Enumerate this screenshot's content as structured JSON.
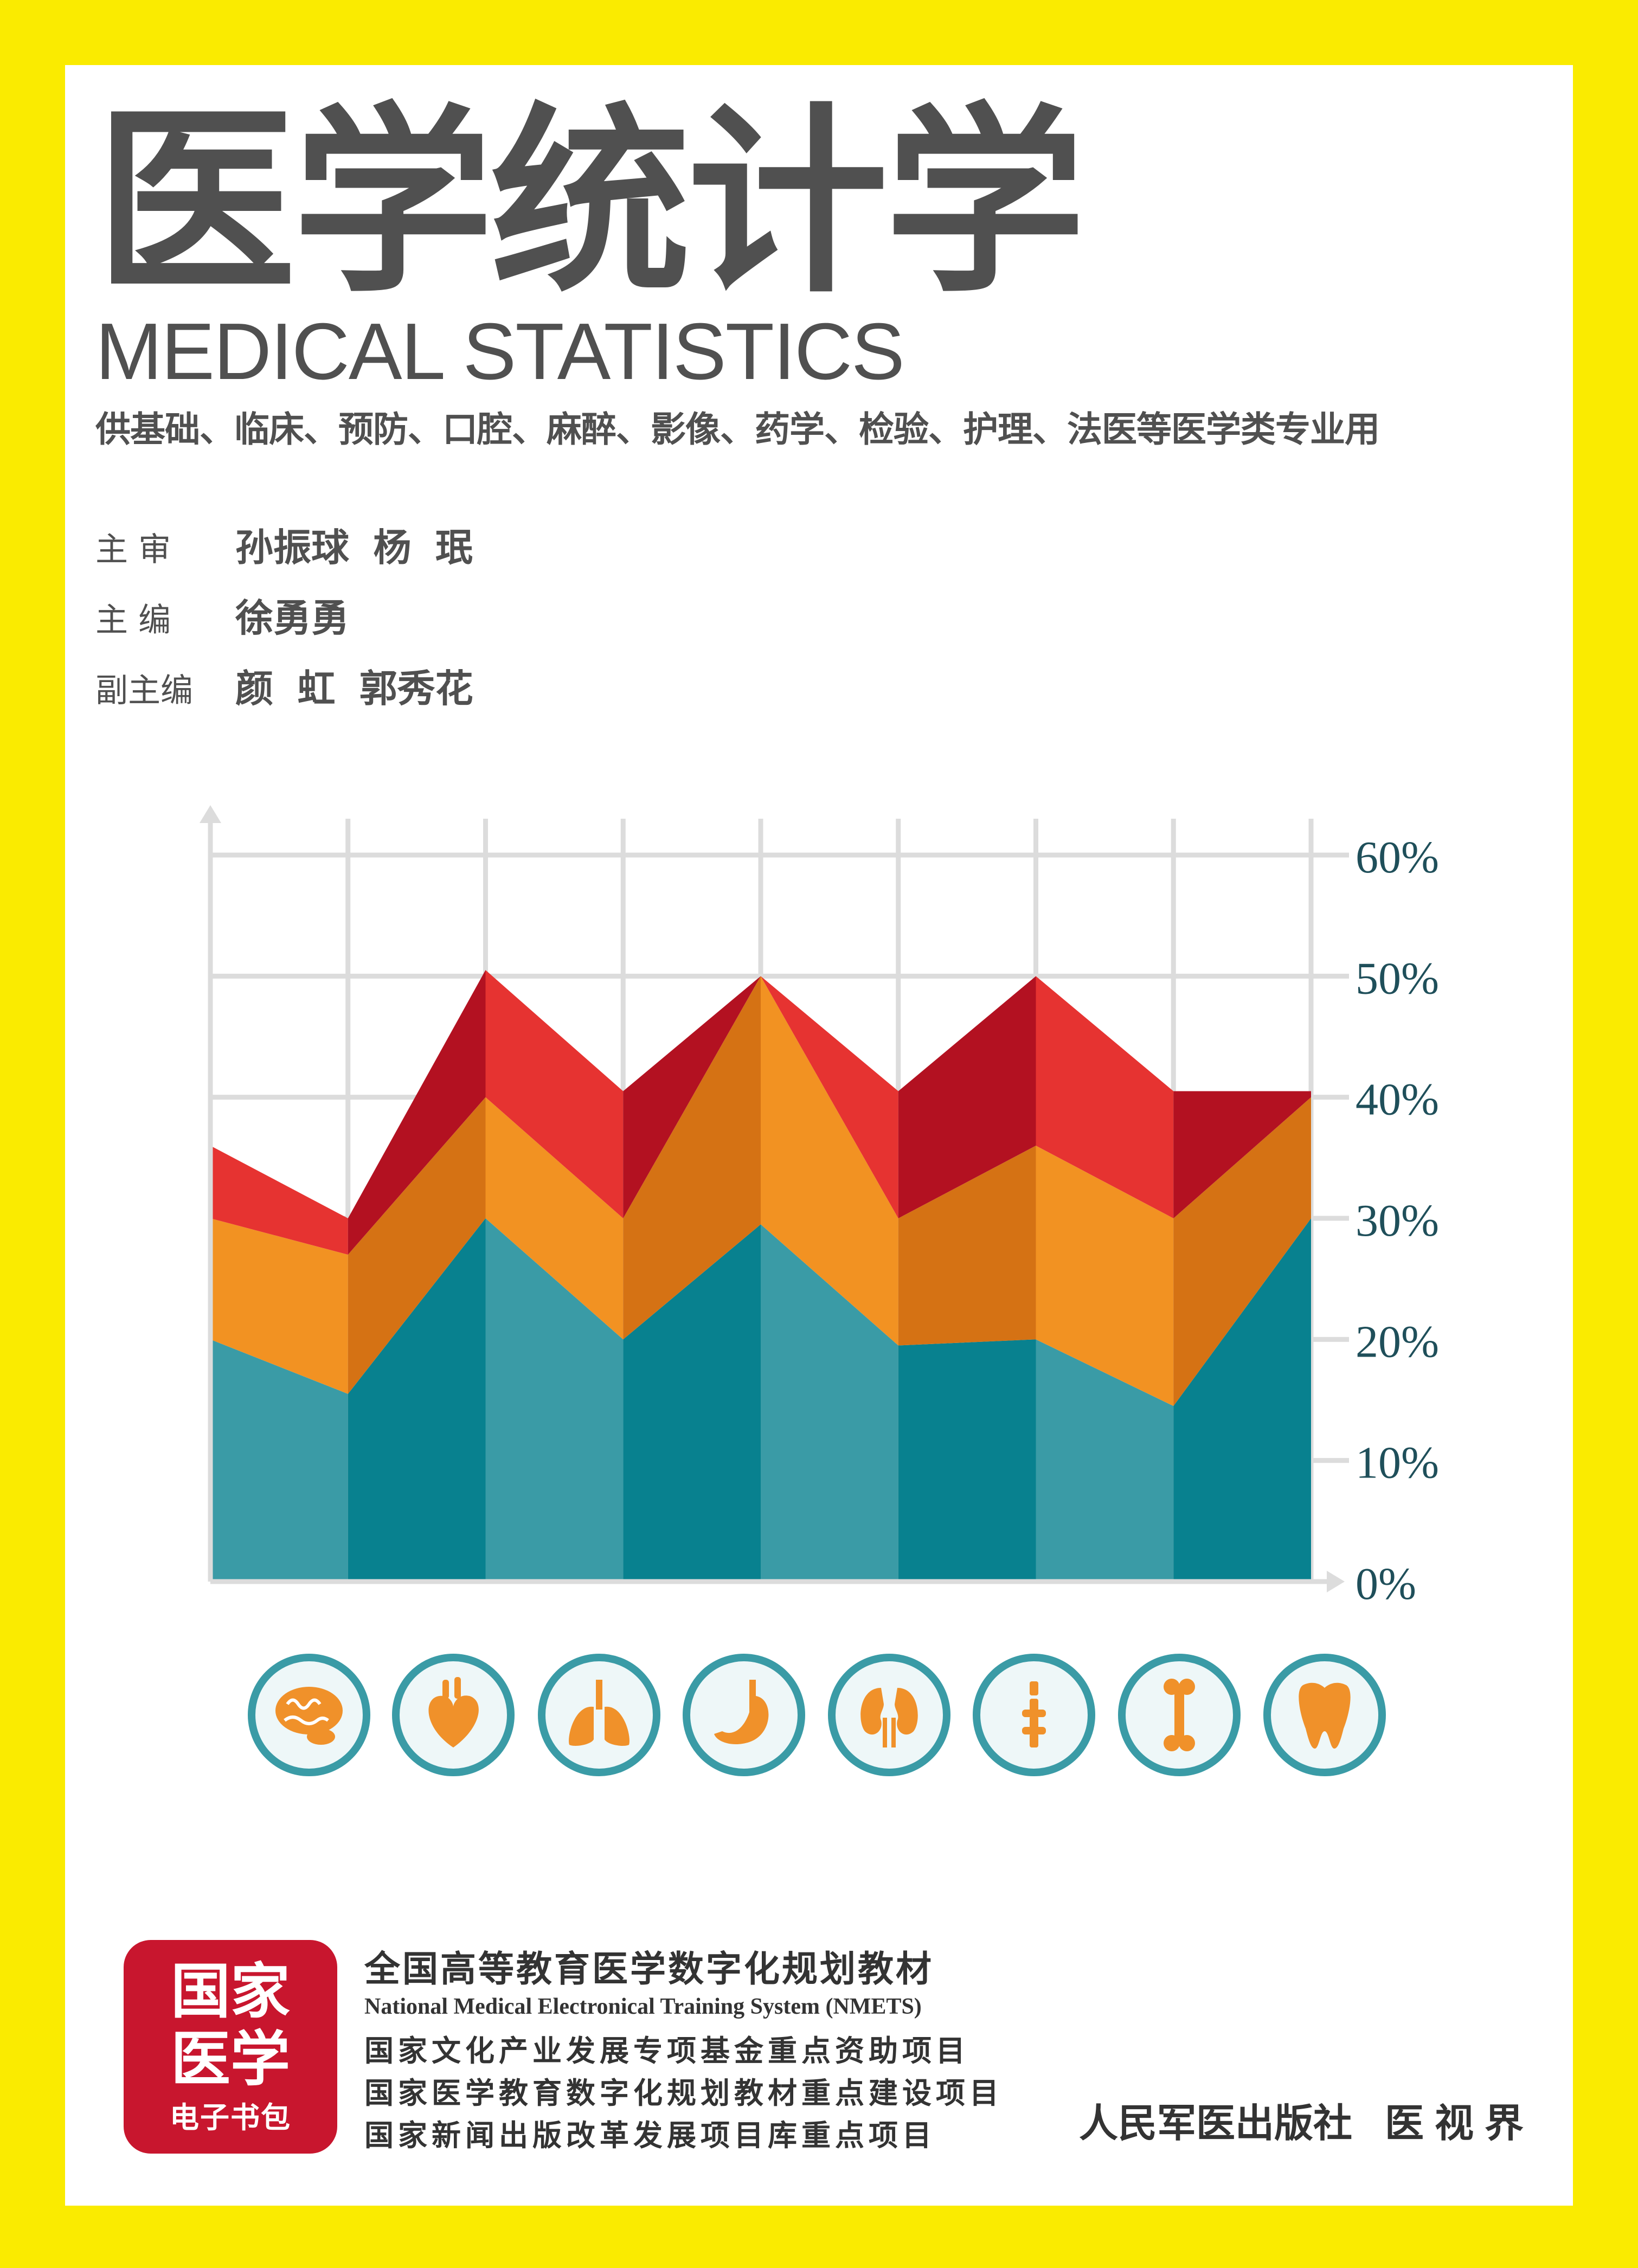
{
  "cover": {
    "title_cn": "医学统计学",
    "title_en": "MEDICAL STATISTICS",
    "subtitle": "供基础、临床、预防、口腔、麻醉、影像、药学、检验、护理、法医等医学类专业用"
  },
  "credits": [
    {
      "role": "主 审",
      "name": "孙振球 杨 珉"
    },
    {
      "role": "主 编",
      "name": "徐勇勇"
    },
    {
      "role": "副主编",
      "name": "颜 虹 郭秀花"
    }
  ],
  "chart_data": {
    "type": "area",
    "stacked": true,
    "title": "",
    "xlabel": "",
    "ylabel": "",
    "ylim": [
      0,
      60
    ],
    "y_ticks": [
      "0%",
      "10%",
      "20%",
      "30%",
      "40%",
      "50%",
      "60%"
    ],
    "grid": true,
    "x": [
      0,
      1,
      2,
      3,
      4,
      5,
      6,
      7,
      8
    ],
    "series": [
      {
        "values": [
          20,
          15.5,
          30,
          20,
          29.5,
          19.5,
          20,
          14.5,
          30
        ],
        "color": "#08818F"
      },
      {
        "values": [
          10,
          11.5,
          10,
          10,
          20.5,
          10.5,
          16,
          15.5,
          10
        ],
        "color": "#F29222"
      },
      {
        "values": [
          6,
          3,
          10.5,
          10.5,
          0,
          10.5,
          14,
          10.5,
          0.5
        ],
        "color": "#E63331"
      }
    ]
  },
  "icons": [
    {
      "name": "brain-icon"
    },
    {
      "name": "heart-icon"
    },
    {
      "name": "lungs-icon"
    },
    {
      "name": "stomach-icon"
    },
    {
      "name": "kidneys-icon"
    },
    {
      "name": "spine-icon"
    },
    {
      "name": "bone-icon"
    },
    {
      "name": "tooth-icon"
    }
  ],
  "badge": {
    "line1": "国家",
    "line2": "医学",
    "line3": "电子书包"
  },
  "program": {
    "line1": "全国高等教育医学数字化规划教材",
    "line2": "National Medical Electronical Training System (NMETS)",
    "line3": "国家文化产业发展专项基金重点资助项目",
    "line4": "国家医学教育数字化规划教材重点建设项目",
    "line5": "国家新闻出版改革发展项目库重点项目"
  },
  "publisher": {
    "name1": "人民军医出版社",
    "name2": "医视界"
  },
  "colors": {
    "background": "#FAEB00",
    "title": "#505050",
    "teal": "#08818F",
    "orange": "#F29222",
    "red": "#E63331",
    "badge": "#C8162E"
  }
}
